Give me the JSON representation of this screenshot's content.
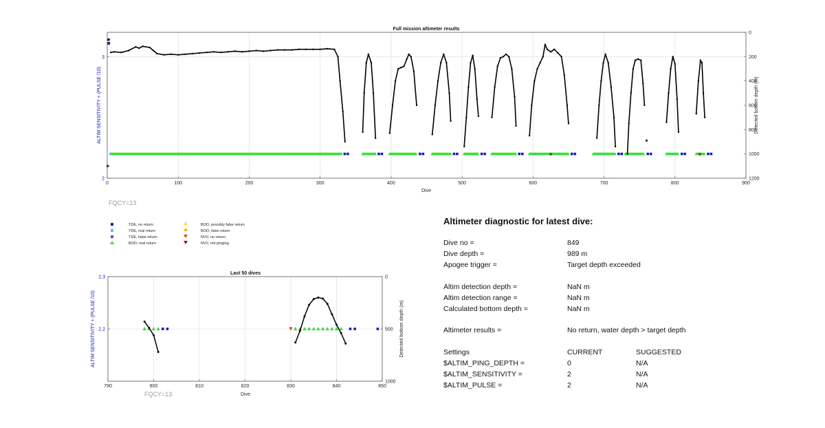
{
  "chart_data": [
    {
      "type": "line",
      "title": "Full mission altimeter results",
      "xlabel": "Dive",
      "ylabel_left": "ALTIM SENSITIVITY + (PULSE /10)",
      "ylabel_right": "Detected bottom depth (m)",
      "xlim": [
        0,
        900
      ],
      "xticks": [
        0,
        100,
        200,
        300,
        400,
        500,
        600,
        700,
        800,
        900
      ],
      "ylim_left": [
        2,
        3.2
      ],
      "yticks_left": [
        2,
        3
      ],
      "ylim_right": [
        1200,
        0
      ],
      "yticks_right": [
        0,
        200,
        400,
        600,
        800,
        1000,
        1200
      ],
      "annotation": "FQCY=13",
      "series": [
        {
          "name": "Detected bottom depth",
          "segments": [
            [
              [
                5,
                165
              ],
              [
                10,
                160
              ],
              [
                20,
                165
              ],
              [
                30,
                150
              ],
              [
                40,
                120
              ],
              [
                45,
                130
              ],
              [
                50,
                115
              ],
              [
                60,
                125
              ],
              [
                65,
                150
              ],
              [
                70,
                175
              ],
              [
                80,
                185
              ],
              [
                90,
                180
              ],
              [
                100,
                185
              ],
              [
                110,
                180
              ],
              [
                120,
                175
              ],
              [
                130,
                170
              ],
              [
                140,
                165
              ],
              [
                150,
                160
              ],
              [
                160,
                165
              ],
              [
                170,
                160
              ],
              [
                180,
                155
              ],
              [
                190,
                160
              ],
              [
                200,
                155
              ],
              [
                210,
                150
              ],
              [
                220,
                155
              ],
              [
                230,
                150
              ],
              [
                240,
                145
              ],
              [
                250,
                145
              ],
              [
                260,
                145
              ],
              [
                270,
                140
              ],
              [
                280,
                140
              ],
              [
                290,
                140
              ],
              [
                300,
                140
              ],
              [
                310,
                135
              ],
              [
                320,
                140
              ],
              [
                325,
                200
              ],
              [
                328,
                400
              ],
              [
                332,
                650
              ],
              [
                335,
                900
              ]
            ],
            [
              [
                360,
                820
              ],
              [
                362,
                500
              ],
              [
                365,
                250
              ],
              [
                368,
                180
              ],
              [
                372,
                250
              ],
              [
                375,
                500
              ],
              [
                378,
                870
              ]
            ],
            [
              [
                398,
                830
              ],
              [
                402,
                600
              ],
              [
                406,
                400
              ],
              [
                410,
                300
              ],
              [
                414,
                290
              ],
              [
                418,
                280
              ],
              [
                422,
                220
              ],
              [
                425,
                180
              ],
              [
                428,
                200
              ],
              [
                432,
                320
              ],
              [
                436,
                600
              ]
            ],
            [
              [
                458,
                840
              ],
              [
                462,
                600
              ],
              [
                466,
                400
              ],
              [
                470,
                250
              ],
              [
                474,
                180
              ],
              [
                478,
                250
              ],
              [
                482,
                500
              ],
              [
                484,
                730
              ]
            ],
            [
              [
                503,
                940
              ],
              [
                506,
                700
              ],
              [
                509,
                450
              ],
              [
                512,
                250
              ],
              [
                515,
                190
              ],
              [
                518,
                300
              ],
              [
                521,
                550
              ],
              [
                523,
                690
              ]
            ],
            [
              [
                542,
                700
              ],
              [
                546,
                450
              ],
              [
                550,
                280
              ],
              [
                554,
                210
              ],
              [
                558,
                200
              ],
              [
                562,
                180
              ],
              [
                566,
                200
              ],
              [
                570,
                300
              ],
              [
                574,
                530
              ],
              [
                576,
                770
              ]
            ],
            [
              [
                595,
                850
              ],
              [
                598,
                600
              ],
              [
                602,
                400
              ],
              [
                606,
                300
              ],
              [
                610,
                250
              ],
              [
                614,
                200
              ],
              [
                617,
                100
              ],
              [
                620,
                140
              ],
              [
                625,
                160
              ],
              [
                630,
                140
              ],
              [
                635,
                170
              ],
              [
                640,
                200
              ],
              [
                644,
                350
              ],
              [
                648,
                600
              ],
              [
                650,
                750
              ]
            ],
            [
              [
                690,
                870
              ],
              [
                693,
                600
              ],
              [
                696,
                400
              ],
              [
                699,
                250
              ],
              [
                702,
                180
              ],
              [
                706,
                250
              ],
              [
                710,
                450
              ],
              [
                714,
                700
              ],
              [
                716,
                940
              ]
            ],
            [
              [
                733,
                1000
              ],
              [
                735,
                750
              ],
              [
                738,
                500
              ],
              [
                741,
                300
              ],
              [
                744,
                230
              ],
              [
                748,
                220
              ],
              [
                752,
                230
              ],
              [
                755,
                420
              ],
              [
                757,
                600
              ]
            ],
            [
              [
                788,
                740
              ],
              [
                791,
                500
              ],
              [
                794,
                300
              ],
              [
                797,
                200
              ],
              [
                800,
                260
              ],
              [
                803,
                550
              ],
              [
                805,
                820
              ]
            ],
            [
              [
                830,
                670
              ],
              [
                833,
                400
              ],
              [
                836,
                230
              ],
              [
                838,
                250
              ],
              [
                840,
                500
              ],
              [
                842,
                700
              ]
            ]
          ]
        },
        {
          "name": "BOD, real return",
          "band": "approx. y=2.2 across dives 5-840"
        },
        {
          "name": "TDE, no return",
          "band": "y=2.2 between dive groups"
        }
      ]
    },
    {
      "type": "line",
      "title": "Last 50 dives",
      "xlabel": "Dive",
      "ylabel_left": "ALTIM SENSITIVITY + (PULSE /10)",
      "ylabel_right": "Detected bottom depth (m)",
      "xlim": [
        790,
        850
      ],
      "xticks": [
        790,
        800,
        810,
        820,
        830,
        840,
        850
      ],
      "ylim_left": [
        2.1,
        2.3
      ],
      "yticks_left": [
        2.2,
        2.3
      ],
      "ylim_right": [
        1000,
        0
      ],
      "yticks_right": [
        0,
        500,
        1000
      ],
      "annotation": "FQCY=13",
      "series": [
        {
          "name": "Detected bottom depth",
          "segments": [
            [
              [
                798,
                430
              ],
              [
                799,
                490
              ],
              [
                800,
                560
              ],
              [
                801,
                720
              ]
            ],
            [
              [
                831,
                630
              ],
              [
                832,
                520
              ],
              [
                833,
                380
              ],
              [
                834,
                270
              ],
              [
                835,
                215
              ],
              [
                836,
                200
              ],
              [
                837,
                210
              ],
              [
                838,
                260
              ],
              [
                839,
                360
              ],
              [
                840,
                460
              ],
              [
                841,
                540
              ],
              [
                842,
                640
              ]
            ]
          ]
        },
        {
          "name": "BOD, real return",
          "x": [
            798,
            799,
            800,
            801,
            831,
            832,
            833,
            834,
            835,
            836,
            837,
            838,
            839,
            840,
            841
          ],
          "y": 2.2
        },
        {
          "name": "TDE, no return",
          "x": [
            802,
            803,
            843,
            844,
            849
          ],
          "y": 2.2
        },
        {
          "name": "NVV, no return",
          "x": [
            830
          ],
          "y": 2.2
        }
      ]
    }
  ],
  "legend": {
    "col1": [
      "TDE, no return",
      "TDE, real return",
      "TDE, false return",
      "BOD, real return"
    ],
    "col2": [
      "BOD, possibly false return",
      "BOD, false return",
      "NVV, no return",
      "NVV, not pinging"
    ]
  },
  "colors": {
    "tde_no": "#1a1ab8",
    "tde_real": "#33ccee",
    "tde_false": "#7a3fc8",
    "bod_real": "#33dd33",
    "bod_possibly": "#ffdd33",
    "bod_false": "#ffaa22",
    "nvv_no": "#dd4411",
    "nvv_not": "#8a1a0a"
  },
  "diagnostic": {
    "heading": "Altimeter diagnostic for latest dive:",
    "dive_no_label": "Dive no =",
    "dive_no": "849",
    "dive_depth_label": "Dive depth =",
    "dive_depth": "989 m",
    "apogee_label": "Apogee trigger =",
    "apogee": "Target depth exceeded",
    "det_depth_label": "Altim detection depth =",
    "det_depth": "NaN m",
    "det_range_label": "Altim detection range =",
    "det_range": "NaN m",
    "calc_label": "Calculated bottom depth =",
    "calc": "NaN m",
    "results_label": "Altimeter results =",
    "results": "No return, water depth > target depth",
    "settings_label": "Settings",
    "current_label": "CURRENT",
    "suggested_label": "SUGGESTED",
    "ping_label": "$ALTIM_PING_DEPTH =",
    "ping_cur": "0",
    "ping_sug": "N/A",
    "sens_label": "$ALTIM_SENSITIVITY =",
    "sens_cur": "2",
    "sens_sug": "N/A",
    "pulse_label": "$ALTIM_PULSE =",
    "pulse_cur": "2",
    "pulse_sug": "N/A"
  }
}
